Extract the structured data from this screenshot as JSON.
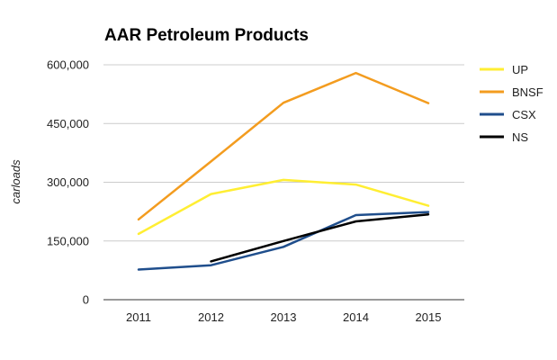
{
  "chart_data": {
    "type": "line",
    "title": "AAR Petroleum Products",
    "ylabel": "carloads",
    "xlabel": "",
    "categories": [
      "2011",
      "2012",
      "2013",
      "2014",
      "2015"
    ],
    "ylim": [
      0,
      600000
    ],
    "yticks": [
      0,
      150000,
      300000,
      450000,
      600000
    ],
    "ytick_labels": [
      "0",
      "150,000",
      "300,000",
      "450,000",
      "600,000"
    ],
    "grid": true,
    "legend_position": "right",
    "series": [
      {
        "name": "UP",
        "color": "#ffee33",
        "values": [
          168000,
          270000,
          306000,
          294000,
          240000
        ]
      },
      {
        "name": "BNSF",
        "color": "#f39c1f",
        "values": [
          205000,
          353000,
          503000,
          579000,
          502000
        ]
      },
      {
        "name": "CSX",
        "color": "#1f4e8c",
        "values": [
          77000,
          88000,
          135000,
          216000,
          224000
        ]
      },
      {
        "name": "NS",
        "color": "#000000",
        "values": [
          null,
          98000,
          150000,
          200000,
          218000
        ]
      }
    ]
  }
}
